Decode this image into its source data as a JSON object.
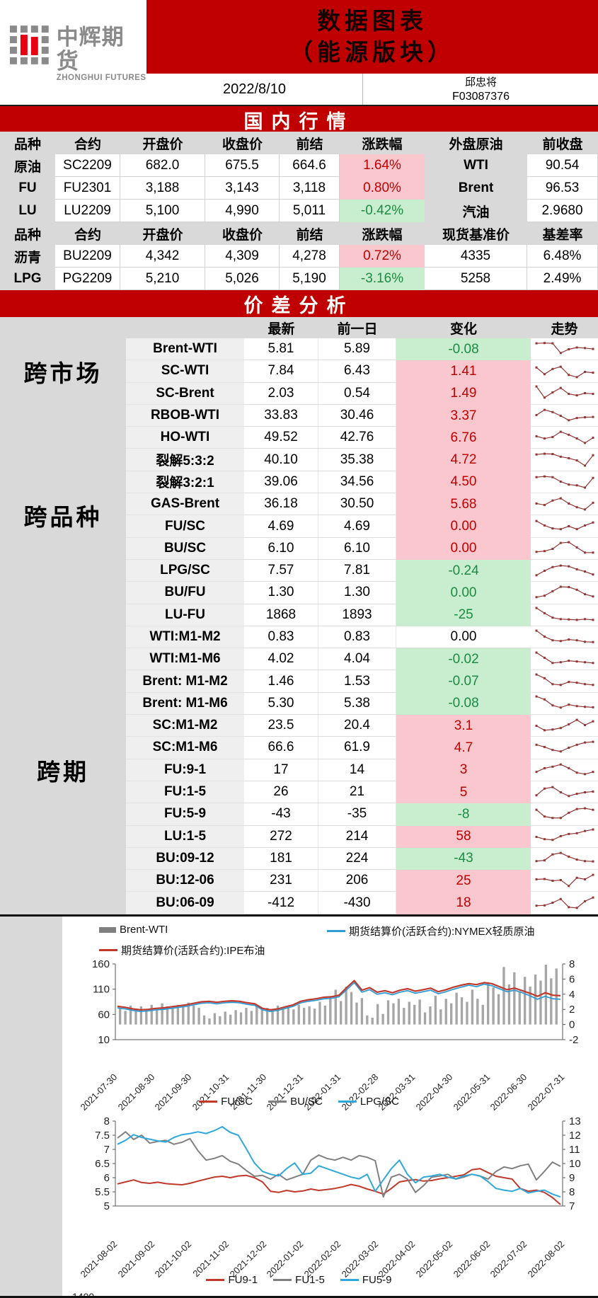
{
  "brand": {
    "name_cn": "中辉期货",
    "name_en": "ZHONGHUI FUTURES"
  },
  "header": {
    "title_line1": "数据图表",
    "title_line2": "（能源版块）",
    "date": "2022/8/10",
    "author": "邱忠将",
    "license_no": "F03087376"
  },
  "sections": {
    "domestic": "国内行情",
    "spread": "价差分析"
  },
  "domestic_table": {
    "header1": [
      "品种",
      "合约",
      "开盘价",
      "收盘价",
      "前结",
      "涨跌幅",
      "外盘原油",
      "前收盘"
    ],
    "rows1": [
      {
        "name": "原油",
        "contract": "SC2209",
        "open": "682.0",
        "close": "675.5",
        "prev": "664.6",
        "chg": "1.64%",
        "dir": "up",
        "ext_name": "WTI",
        "ext_val": "90.54"
      },
      {
        "name": "FU",
        "contract": "FU2301",
        "open": "3,188",
        "close": "3,143",
        "prev": "3,118",
        "chg": "0.80%",
        "dir": "up",
        "ext_name": "Brent",
        "ext_val": "96.53"
      },
      {
        "name": "LU",
        "contract": "LU2209",
        "open": "5,100",
        "close": "4,990",
        "prev": "5,011",
        "chg": "-0.42%",
        "dir": "down",
        "ext_name": "汽油",
        "ext_val": "2.9680"
      }
    ],
    "header2": [
      "品种",
      "合约",
      "开盘价",
      "收盘价",
      "前结",
      "涨跌幅",
      "现货基准价",
      "基差率"
    ],
    "rows2": [
      {
        "name": "沥青",
        "contract": "BU2209",
        "open": "4,342",
        "close": "4,309",
        "prev": "4,278",
        "chg": "0.72%",
        "dir": "up",
        "ext_name": "4335",
        "ext_val": "6.48%"
      },
      {
        "name": "LPG",
        "contract": "PG2209",
        "open": "5,210",
        "close": "5,026",
        "prev": "5,190",
        "chg": "-3.16%",
        "dir": "down",
        "ext_name": "5258",
        "ext_val": "2.49%"
      }
    ]
  },
  "spread_table": {
    "headers": {
      "latest": "最新",
      "prev": "前一日",
      "change": "变化",
      "trend": "走势"
    },
    "groups": [
      {
        "label": "跨市场",
        "span": 3
      },
      {
        "label": "跨品种",
        "span": 10
      },
      {
        "label": "跨期",
        "span": 13
      }
    ],
    "rows": [
      {
        "name": "Brent-WTI",
        "latest": "5.81",
        "prev": "5.89",
        "change": "-0.08",
        "state": "down",
        "spark": [
          0.9,
          0.92,
          0.9,
          0.25,
          0.5,
          0.62,
          0.58,
          0.52
        ]
      },
      {
        "name": "SC-WTI",
        "latest": "7.84",
        "prev": "6.43",
        "change": "1.41",
        "state": "up",
        "spark": [
          0.75,
          0.3,
          0.65,
          0.8,
          0.25,
          0.1,
          0.45,
          0.4
        ]
      },
      {
        "name": "SC-Brent",
        "latest": "2.03",
        "prev": "0.54",
        "change": "1.49",
        "state": "up",
        "spark": [
          0.95,
          0.2,
          0.55,
          0.85,
          0.45,
          0.35,
          0.5,
          0.45
        ]
      },
      {
        "name": "RBOB-WTI",
        "latest": "33.83",
        "prev": "30.46",
        "change": "3.37",
        "state": "up",
        "spark": [
          0.55,
          0.9,
          0.75,
          0.5,
          0.2,
          0.35,
          0.4,
          0.42
        ]
      },
      {
        "name": "HO-WTI",
        "latest": "49.52",
        "prev": "42.76",
        "change": "6.76",
        "state": "up",
        "spark": [
          0.6,
          0.45,
          0.55,
          0.9,
          0.7,
          0.45,
          0.15,
          0.5
        ]
      },
      {
        "name": "裂解5:3:2",
        "latest": "40.10",
        "prev": "35.38",
        "change": "4.72",
        "state": "up",
        "spark": [
          0.85,
          0.9,
          0.88,
          0.7,
          0.6,
          0.45,
          0.1,
          0.8
        ]
      },
      {
        "name": "裂解3:2:1",
        "latest": "39.06",
        "prev": "34.56",
        "change": "4.50",
        "state": "up",
        "spark": [
          0.8,
          0.85,
          0.8,
          0.5,
          0.3,
          0.25,
          0.1,
          0.75
        ]
      },
      {
        "name": "GAS-Brent",
        "latest": "36.18",
        "prev": "30.50",
        "change": "5.68",
        "state": "up",
        "spark": [
          0.55,
          0.45,
          0.75,
          0.9,
          0.55,
          0.3,
          0.15,
          0.6
        ]
      },
      {
        "name": "FU/SC",
        "latest": "4.69",
        "prev": "4.69",
        "change": "0.00",
        "state": "up",
        "spark": [
          0.85,
          0.55,
          0.35,
          0.3,
          0.5,
          0.3,
          0.55,
          0.75
        ]
      },
      {
        "name": "BU/SC",
        "latest": "6.10",
        "prev": "6.10",
        "change": "0.00",
        "state": "up",
        "spark": [
          0.25,
          0.3,
          0.45,
          0.85,
          0.9,
          0.55,
          0.2,
          0.2
        ]
      },
      {
        "name": "LPG/SC",
        "latest": "7.57",
        "prev": "7.81",
        "change": "-0.24",
        "state": "down",
        "spark": [
          0.2,
          0.5,
          0.75,
          0.85,
          0.8,
          0.6,
          0.45,
          0.25
        ]
      },
      {
        "name": "BU/FU",
        "latest": "1.30",
        "prev": "1.30",
        "change": "0.00",
        "state": "down",
        "spark": [
          0.2,
          0.3,
          0.6,
          0.9,
          0.88,
          0.7,
          0.4,
          0.25
        ]
      },
      {
        "name": "LU-FU",
        "latest": "1868",
        "prev": "1893",
        "change": "-25",
        "state": "down",
        "spark": [
          0.95,
          0.6,
          0.3,
          0.2,
          0.18,
          0.15,
          0.2,
          0.15
        ]
      },
      {
        "name": "WTI:M1-M2",
        "latest": "0.83",
        "prev": "0.83",
        "change": "0.00",
        "state": "flat",
        "spark": [
          0.95,
          0.55,
          0.3,
          0.25,
          0.35,
          0.3,
          0.2,
          0.18
        ]
      },
      {
        "name": "WTI:M1-M6",
        "latest": "4.02",
        "prev": "4.04",
        "change": "-0.02",
        "state": "down",
        "spark": [
          0.95,
          0.6,
          0.25,
          0.3,
          0.4,
          0.35,
          0.3,
          0.25
        ]
      },
      {
        "name": "Brent: M1-M2",
        "latest": "1.46",
        "prev": "1.53",
        "change": "-0.07",
        "state": "down",
        "spark": [
          0.95,
          0.7,
          0.3,
          0.25,
          0.45,
          0.4,
          0.3,
          0.25
        ]
      },
      {
        "name": "Brent: M1-M6",
        "latest": "5.30",
        "prev": "5.38",
        "change": "-0.08",
        "state": "down",
        "spark": [
          0.95,
          0.75,
          0.35,
          0.2,
          0.4,
          0.3,
          0.25,
          0.22
        ]
      },
      {
        "name": "SC:M1-M2",
        "latest": "23.5",
        "prev": "20.4",
        "change": "3.1",
        "state": "up",
        "spark": [
          0.5,
          0.2,
          0.25,
          0.35,
          0.6,
          0.9,
          0.55,
          0.8
        ]
      },
      {
        "name": "SC:M1-M6",
        "latest": "66.6",
        "prev": "61.9",
        "change": "4.7",
        "state": "up",
        "spark": [
          0.7,
          0.55,
          0.35,
          0.25,
          0.5,
          0.7,
          0.85,
          0.9
        ]
      },
      {
        "name": "FU:9-1",
        "latest": "17",
        "prev": "14",
        "change": "3",
        "state": "up",
        "spark": [
          0.35,
          0.6,
          0.7,
          0.85,
          0.6,
          0.3,
          0.2,
          0.35
        ]
      },
      {
        "name": "FU:1-5",
        "latest": "26",
        "prev": "21",
        "change": "5",
        "state": "up",
        "spark": [
          0.3,
          0.75,
          0.85,
          0.5,
          0.25,
          0.4,
          0.5,
          0.55
        ]
      },
      {
        "name": "FU:5-9",
        "latest": "-43",
        "prev": "-35",
        "change": "-8",
        "state": "down",
        "spark": [
          0.8,
          0.35,
          0.25,
          0.25,
          0.6,
          0.85,
          0.9,
          0.8
        ]
      },
      {
        "name": "LU:1-5",
        "latest": "272",
        "prev": "214",
        "change": "58",
        "state": "up",
        "spark": [
          0.45,
          0.3,
          0.25,
          0.5,
          0.65,
          0.7,
          0.85,
          0.95
        ]
      },
      {
        "name": "BU:09-12",
        "latest": "181",
        "prev": "224",
        "change": "-43",
        "state": "down",
        "spark": [
          0.3,
          0.35,
          0.75,
          0.85,
          0.6,
          0.4,
          0.3,
          0.28
        ]
      },
      {
        "name": "BU:12-06",
        "latest": "231",
        "prev": "206",
        "change": "25",
        "state": "up",
        "spark": [
          0.6,
          0.62,
          0.5,
          0.55,
          0.15,
          0.7,
          0.6,
          0.9
        ]
      },
      {
        "name": "BU:06-09",
        "latest": "-412",
        "prev": "-430",
        "change": "18",
        "state": "up",
        "spark": [
          0.3,
          0.32,
          0.5,
          0.75,
          0.2,
          0.15,
          0.6,
          0.85
        ]
      }
    ]
  },
  "chart_data": [
    {
      "type": "line+bar",
      "legend": [
        {
          "label": "Brent-WTI",
          "color": "#808080",
          "kind": "bar"
        },
        {
          "label": "期货结算价(活跃合约):NYMEX轻质原油",
          "color": "#2e9bd5",
          "kind": "line"
        },
        {
          "label": "期货结算价(活跃合约):IPE布油",
          "color": "#c0392b",
          "kind": "line"
        }
      ],
      "left_ticks": [
        160,
        110,
        60,
        10
      ],
      "right_ticks": [
        8,
        6,
        4,
        2,
        0,
        -2
      ],
      "left_range": [
        10,
        160
      ],
      "right_range": [
        -2,
        8
      ],
      "x_labels": [
        "2021-07-30",
        "2021-08-30",
        "2021-09-30",
        "2021-10-31",
        "2021-11-30",
        "2021-12-31",
        "2022-01-31",
        "2022-02-28",
        "2022-03-31",
        "2022-04-30",
        "2022-05-31",
        "2022-06-30",
        "2022-07-31"
      ],
      "bars_axis": "right",
      "bars": [
        2.2,
        1.8,
        2.5,
        2.1,
        2.4,
        2.0,
        2.6,
        2.2,
        2.8,
        2.4,
        2.1,
        2.6,
        2.3,
        2.9,
        2.5,
        2.2,
        1.2,
        0.8,
        1.5,
        1.1,
        1.7,
        1.3,
        1.9,
        1.6,
        2.2,
        1.8,
        2.4,
        2.0,
        2.2,
        1.9,
        2.5,
        2.1,
        2.3,
        2.0,
        2.6,
        2.2,
        2.4,
        2.1,
        3.0,
        2.5,
        3.6,
        4.6,
        3.1,
        5.0,
        4.3,
        2.9,
        3.5,
        1.2,
        0.9,
        2.7,
        1.4,
        3.2,
        2.8,
        3.4,
        2.2,
        3.0,
        2.6,
        3.3,
        1.6,
        2.4,
        3.8,
        2.0,
        3.4,
        2.8,
        4.2,
        3.6,
        3.0,
        4.6,
        3.4,
        2.6,
        5.6,
        4.9,
        4.0,
        7.6,
        5.3,
        6.9,
        4.4,
        6.3,
        5.0,
        6.6,
        5.8,
        7.9,
        6.1,
        7.4
      ],
      "series": [
        {
          "name": "NYMEX轻质原油",
          "axis": "left",
          "color": "#2e9bd5",
          "width": 1.8,
          "values": [
            73,
            71,
            68,
            66,
            67,
            69,
            70,
            72,
            74,
            76,
            79,
            82,
            83,
            81,
            83,
            84,
            83,
            80,
            78,
            69,
            66,
            68,
            72,
            76,
            83,
            86,
            88,
            91,
            92,
            95,
            109,
            123,
            104,
            109,
            100,
            103,
            99,
            104,
            107,
            102,
            105,
            108,
            101,
            105,
            110,
            114,
            118,
            115,
            120,
            117,
            111,
            105,
            108,
            103,
            97,
            90,
            96,
            91,
            90
          ]
        },
        {
          "name": "IPE布油",
          "axis": "left",
          "color": "#c0392b",
          "width": 2.2,
          "values": [
            76,
            74,
            71,
            69,
            70,
            72,
            73,
            75,
            77,
            79,
            82,
            85,
            86,
            84,
            86,
            87,
            86,
            83,
            81,
            72,
            69,
            71,
            75,
            79,
            86,
            89,
            91,
            94,
            95,
            98,
            113,
            127,
            108,
            113,
            104,
            107,
            103,
            108,
            111,
            106,
            109,
            112,
            105,
            109,
            114,
            118,
            121,
            119,
            123,
            121,
            115,
            109,
            112,
            107,
            102,
            96,
            103,
            98,
            97
          ]
        }
      ]
    },
    {
      "type": "line",
      "legend": [
        {
          "label": "FU/SC",
          "color": "#c0392b",
          "kind": "line"
        },
        {
          "label": "BU/SC",
          "color": "#808080",
          "kind": "line"
        },
        {
          "label": "LPG/SC",
          "color": "#2fa8dc",
          "kind": "line"
        }
      ],
      "left_ticks": [
        8,
        7.5,
        7,
        6.5,
        6,
        5.5,
        5
      ],
      "right_ticks": [
        13,
        12,
        11,
        10,
        9,
        8,
        7
      ],
      "left_range": [
        5,
        8
      ],
      "right_range": [
        7,
        13
      ],
      "x_labels": [
        "2021-08-02",
        "2021-09-02",
        "2021-10-02",
        "2021-11-02",
        "2021-12-02",
        "2022-01-02",
        "2022-02-02",
        "2022-03-02",
        "2022-04-02",
        "2022-05-02",
        "2022-06-02",
        "2022-07-02",
        "2022-08-02"
      ],
      "series": [
        {
          "name": "FU/SC",
          "axis": "left",
          "color": "#c0392b",
          "width": 2,
          "values": [
            5.78,
            5.85,
            5.92,
            5.83,
            5.8,
            5.84,
            5.79,
            5.77,
            5.75,
            5.8,
            5.88,
            5.95,
            6.02,
            6.05,
            6.0,
            6.06,
            6.08,
            6.0,
            5.85,
            5.52,
            5.48,
            5.55,
            5.5,
            5.53,
            5.6,
            5.55,
            5.58,
            5.62,
            5.68,
            5.76,
            5.7,
            5.6,
            5.52,
            5.42,
            5.62,
            5.85,
            5.9,
            5.93,
            5.88,
            5.9,
            5.96,
            6.0,
            6.05,
            6.1,
            6.28,
            6.32,
            6.18,
            6.05,
            6.0,
            5.95,
            5.62,
            5.52,
            5.56,
            5.48,
            5.3,
            5.05
          ]
        },
        {
          "name": "BU/SC",
          "axis": "left",
          "color": "#808080",
          "width": 2,
          "values": [
            7.4,
            7.62,
            7.35,
            7.5,
            7.22,
            7.28,
            7.32,
            7.18,
            7.25,
            7.38,
            6.95,
            6.62,
            6.68,
            6.78,
            6.58,
            6.48,
            6.25,
            6.05,
            6.08,
            5.95,
            6.12,
            5.92,
            6.02,
            6.12,
            6.62,
            6.8,
            6.68,
            6.62,
            6.72,
            6.62,
            6.78,
            6.72,
            6.6,
            5.32,
            6.02,
            6.12,
            5.95,
            5.48,
            5.72,
            6.02,
            6.06,
            6.12,
            5.95,
            6.02,
            6.12,
            6.06,
            5.95,
            6.22,
            6.38,
            6.32,
            6.42,
            6.48,
            5.92,
            6.22,
            6.55,
            6.4
          ]
        },
        {
          "name": "LPG/SC",
          "axis": "right",
          "color": "#2fa8dc",
          "width": 2,
          "values": [
            11.36,
            11.64,
            12.04,
            11.84,
            11.72,
            11.6,
            11.52,
            11.84,
            12.04,
            12.12,
            12.24,
            12.12,
            12.32,
            12.6,
            12.2,
            12.0,
            11.04,
            10.04,
            9.44,
            9.24,
            9.12,
            9.64,
            10.04,
            9.24,
            9.32,
            9.84,
            9.64,
            9.44,
            9.24,
            9.04,
            8.92,
            9.24,
            8.04,
            8.84,
            9.64,
            10.24,
            9.24,
            8.64,
            9.04,
            9.12,
            9.24,
            9.04,
            8.92,
            9.12,
            9.24,
            9.12,
            8.72,
            8.24,
            8.12,
            8.04,
            8.24,
            7.92,
            8.04,
            8.12,
            7.84,
            7.64
          ]
        }
      ]
    },
    {
      "type": "line",
      "note": "chart clipped at page bottom; only legend visible",
      "legend": [
        {
          "label": "FU9-1",
          "color": "#c0392b",
          "kind": "line"
        },
        {
          "label": "FU1-5",
          "color": "#808080",
          "kind": "line"
        },
        {
          "label": "FU5-9",
          "color": "#2fa8dc",
          "kind": "line"
        }
      ],
      "partial_tick": "1400"
    }
  ],
  "colors": {
    "banner_red": "#c00000",
    "up_bg": "#f9c7cd",
    "up_text": "#c00000",
    "down_bg": "#c8eecf",
    "down_text": "#1d8a42",
    "header_gray": "#d9d9d9",
    "name_col_gray": "#efefef",
    "sparkline": "#943634",
    "bar_gray": "#a6a6a6",
    "line_blue": "#2e9bd5",
    "line_red": "#c0392b",
    "line_gray": "#808080",
    "line_cyan": "#2fa8dc",
    "logo_gray": "#8a8a8a",
    "logo_red": "#e60012"
  }
}
